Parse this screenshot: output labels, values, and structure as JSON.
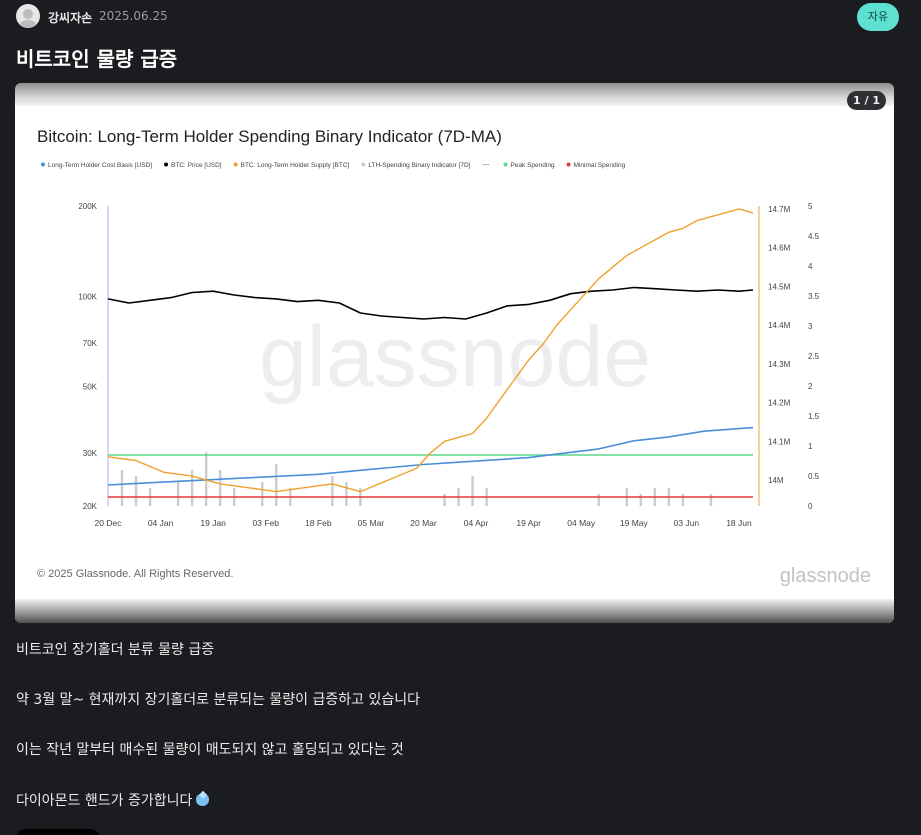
{
  "post": {
    "author": "강씨자손",
    "date": "2025.06.25",
    "category": "자유",
    "title": "비트코인 물량 급증",
    "image_counter": "1 / 1",
    "body": [
      "비트코인 장기홀더 분류 물량 급증",
      "약 3월 말~ 현재까지 장기홀더로 분류되는 물량이 급증하고 있습니다",
      "이는 작년 말부터 매수된 물량이 매도되지 않고 홀딩되고 있다는 것",
      "다이아몬드 핸드가 증가합니다"
    ],
    "emoji_icon": "gem-icon"
  },
  "chart_data": {
    "type": "line",
    "title": "Bitcoin: Long-Term Holder Spending Binary Indicator (7D-MA)",
    "watermark": "glassnode",
    "copyright": "© 2025 Glassnode. All Rights Reserved.",
    "brand": "glassnode",
    "legend_placement": "top-left",
    "legend": [
      {
        "label": "Long-Term Holder Cost Basis [USD]",
        "color": "#4a90d9",
        "marker": "dot"
      },
      {
        "label": "BTC: Price [USD]",
        "color": "#000000",
        "marker": "dot"
      },
      {
        "label": "BTC: Long-Term Holder Supply [BTC]",
        "color": "#f0a030",
        "marker": "dot"
      },
      {
        "label": "LTH-Spending Binary Indicator [7D]",
        "color": "#cccccc",
        "marker": "dot"
      },
      {
        "label": "",
        "color": "#555555",
        "marker": "dash"
      },
      {
        "label": "Peak Spending",
        "color": "#5fd68c",
        "marker": "dot"
      },
      {
        "label": "Minimal Spending",
        "color": "#e53935",
        "marker": "dot"
      }
    ],
    "x_ticks": [
      "20 Dec",
      "04 Jan",
      "19 Jan",
      "03 Feb",
      "18 Feb",
      "05 Mar",
      "20 Mar",
      "04 Apr",
      "19 Apr",
      "04 May",
      "19 May",
      "03 Jun",
      "18 Jun"
    ],
    "x_range": [
      "2024-12-20",
      "2025-06-22"
    ],
    "y_left": {
      "scale": "log",
      "ticks": [
        "200K",
        "100K",
        "70K",
        "50K",
        "30K",
        "20K"
      ],
      "range": [
        20000,
        200000
      ]
    },
    "y_right1": {
      "ticks": [
        "14.7M",
        "14.6M",
        "14.5M",
        "14.4M",
        "14.3M",
        "14.2M",
        "14.1M",
        "14M"
      ],
      "range": [
        14000000,
        14700000
      ]
    },
    "y_right2": {
      "ticks": [
        "5",
        "4.5",
        "4",
        "3.5",
        "3",
        "2.5",
        "2",
        "1.5",
        "1",
        "0.5",
        "0"
      ],
      "range": [
        0,
        5
      ]
    },
    "reference_lines": [
      {
        "name": "Peak Spending",
        "value": 0.85,
        "axis": "y_right2",
        "color": "#5fd68c"
      },
      {
        "name": "Minimal Spending",
        "value": 0.15,
        "axis": "y_right2",
        "color": "#e53935"
      }
    ],
    "series": [
      {
        "name": "BTC: Price [USD]",
        "axis": "y_left",
        "color": "#000000",
        "x": [
          0,
          6,
          12,
          18,
          24,
          30,
          36,
          42,
          48,
          54,
          60,
          66,
          72,
          78,
          84,
          90,
          96,
          102,
          108,
          114,
          120,
          126,
          132,
          138,
          144,
          150,
          156,
          162,
          168,
          174,
          180,
          184
        ],
        "values": [
          98000,
          95000,
          97000,
          99000,
          103000,
          104000,
          101000,
          99000,
          98000,
          96000,
          97000,
          95000,
          88000,
          86000,
          85000,
          84000,
          85000,
          84000,
          88000,
          93000,
          94000,
          97000,
          102000,
          104000,
          105000,
          107000,
          106000,
          105000,
          104000,
          105000,
          104000,
          105000
        ]
      },
      {
        "name": "Long-Term Holder Cost Basis [USD]",
        "axis": "y_left",
        "color": "#4a90d9",
        "x": [
          0,
          15,
          30,
          45,
          60,
          75,
          90,
          100,
          110,
          120,
          130,
          140,
          150,
          160,
          170,
          184
        ],
        "values": [
          23500,
          24000,
          24500,
          25000,
          25500,
          26500,
          27500,
          28000,
          28500,
          29000,
          30000,
          31000,
          33000,
          34000,
          35500,
          36500
        ]
      },
      {
        "name": "BTC: Long-Term Holder Supply [BTC]",
        "axis": "y_right1",
        "color": "#f0a030",
        "x": [
          0,
          8,
          16,
          24,
          32,
          40,
          48,
          56,
          64,
          72,
          80,
          88,
          92,
          96,
          100,
          104,
          108,
          112,
          116,
          120,
          124,
          128,
          132,
          136,
          140,
          144,
          148,
          152,
          156,
          160,
          164,
          168,
          172,
          176,
          180,
          184
        ],
        "values": [
          14060000,
          14050000,
          14020000,
          14010000,
          13990000,
          13980000,
          13970000,
          13980000,
          13990000,
          13970000,
          14000000,
          14030000,
          14070000,
          14100000,
          14110000,
          14120000,
          14160000,
          14210000,
          14260000,
          14310000,
          14350000,
          14400000,
          14440000,
          14480000,
          14520000,
          14550000,
          14580000,
          14600000,
          14620000,
          14640000,
          14650000,
          14670000,
          14680000,
          14690000,
          14700000,
          14690000
        ]
      },
      {
        "name": "LTH-Spending Binary Indicator [7D]",
        "axis": "y_right2",
        "type": "bar",
        "color": "#cccccc",
        "x": [
          4,
          8,
          12,
          20,
          24,
          28,
          32,
          36,
          44,
          48,
          52,
          64,
          68,
          72,
          96,
          100,
          104,
          108,
          140,
          148,
          152,
          156,
          160,
          164,
          172
        ],
        "values": [
          0.6,
          0.5,
          0.3,
          0.4,
          0.6,
          0.9,
          0.6,
          0.3,
          0.4,
          0.7,
          0.3,
          0.5,
          0.4,
          0.3,
          0.2,
          0.3,
          0.5,
          0.3,
          0.2,
          0.3,
          0.2,
          0.3,
          0.3,
          0.2,
          0.2
        ]
      }
    ]
  }
}
